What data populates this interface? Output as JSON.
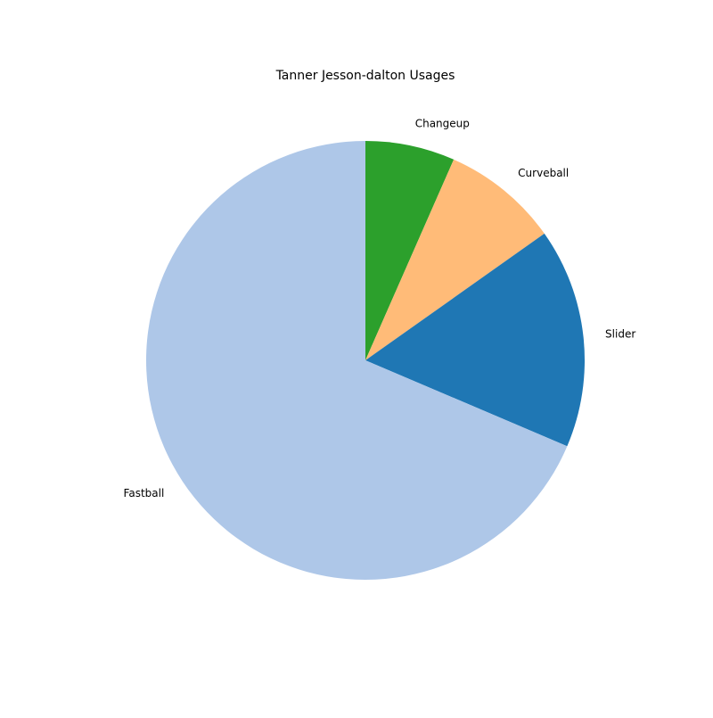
{
  "chart_data": {
    "type": "pie",
    "title": "Tanner Jesson-dalton Usages",
    "start": "top",
    "direction": "clockwise",
    "categories": [
      "Changeup",
      "Curveball",
      "Slider",
      "Fastball"
    ],
    "values": [
      6.6,
      8.6,
      16.2,
      68.6
    ],
    "colors": [
      "#2ca02c",
      "#ffbb78",
      "#1f77b4",
      "#aec7e8"
    ],
    "legend": "none"
  }
}
